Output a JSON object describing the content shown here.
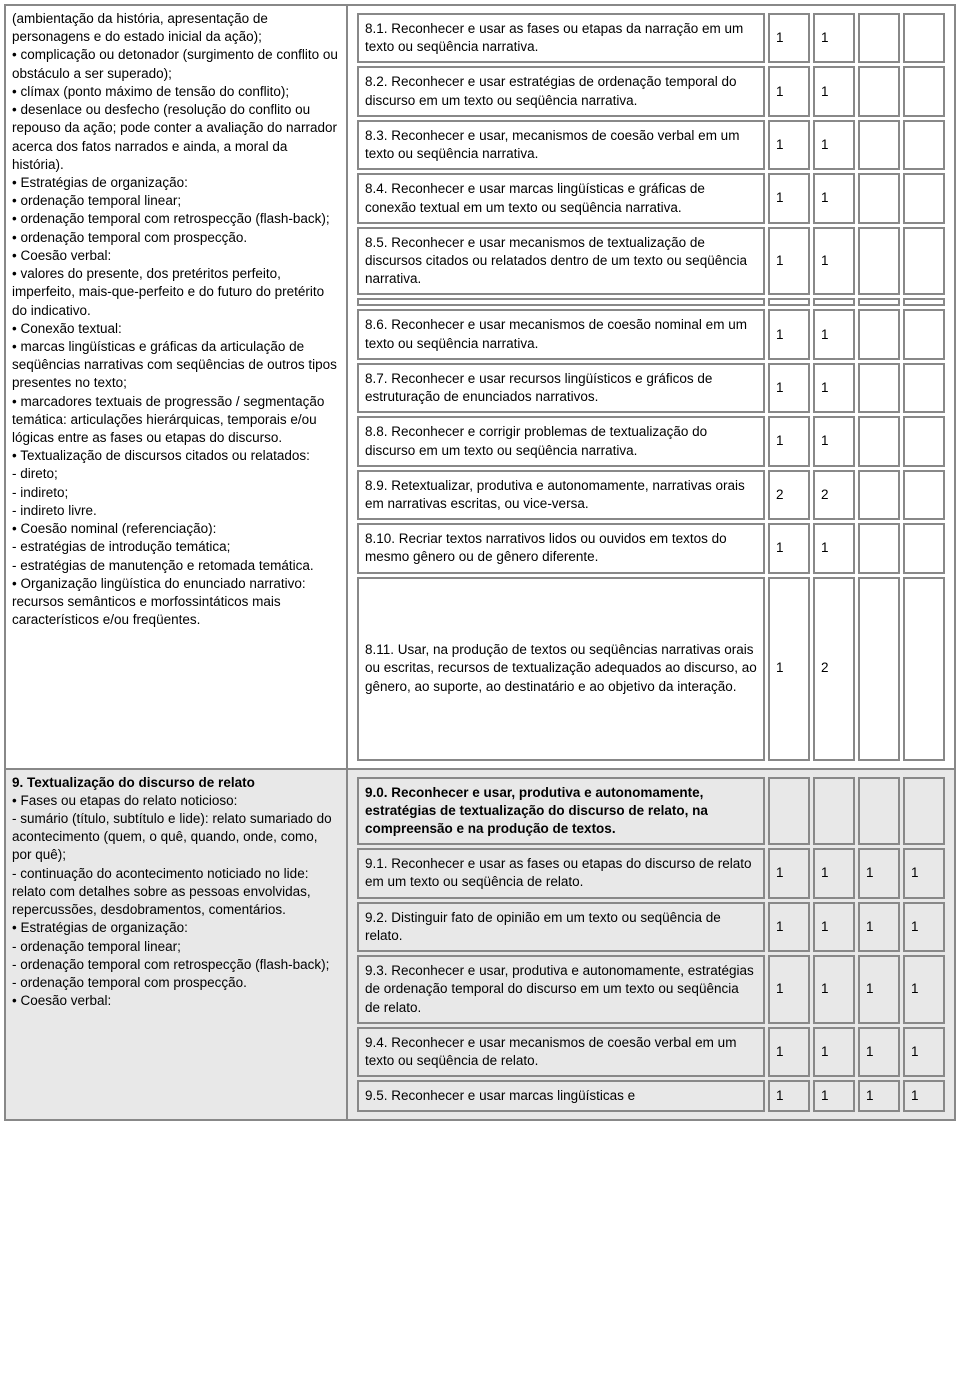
{
  "section8": {
    "left_text": "(ambientação da história, apresentação de personagens e do estado inicial da ação);\n• complicação ou detonador (surgimento de conflito ou obstáculo a ser superado);\n• clímax (ponto máximo de tensão do conflito);\n• desenlace ou desfecho (resolução do conflito ou repouso da ação; pode conter a avaliação do narrador acerca dos fatos narrados e ainda, a moral da história).\n• Estratégias de organização:\n• ordenação temporal linear;\n• ordenação temporal com retrospecção (flash-back);\n• ordenação temporal com prospecção.\n• Coesão verbal:\n• valores do presente, dos pretéritos perfeito, imperfeito, mais-que-perfeito e do futuro do pretérito do indicativo.\n• Conexão textual:\n• marcas lingüísticas e gráficas da articulação de seqüências narrativas com seqüências de outros tipos presentes no texto;\n• marcadores textuais de progressão / segmentação temática: articulações hierárquicas, temporais e/ou lógicas entre as fases ou etapas do discurso.\n• Textualização de discursos citados ou relatados:\n- direto;\n- indireto;\n- indireto livre.\n• Coesão nominal (referenciação):\n- estratégias de introdução temática;\n- estratégias de manutenção e retomada temática.\n• Organização lingüística do enunciado narrativo: recursos semânticos e morfossintáticos mais característicos e/ou freqüentes.",
    "rows": [
      {
        "desc": "8.1. Reconhecer e usar as fases ou etapas da narração em um texto ou seqüência narrativa.",
        "v": [
          "1",
          "1",
          "",
          ""
        ]
      },
      {
        "desc": "8.2. Reconhecer e usar estratégias de ordenação temporal do discurso em um texto ou seqüência narrativa.",
        "v": [
          "1",
          "1",
          "",
          ""
        ]
      },
      {
        "desc": "8.3. Reconhecer e usar, mecanismos de coesão verbal em um texto ou seqüência narrativa.",
        "v": [
          "1",
          "1",
          "",
          ""
        ]
      },
      {
        "desc": "8.4. Reconhecer e usar marcas lingüísticas e gráficas de conexão textual em um texto ou seqüência narrativa.",
        "v": [
          "1",
          "1",
          "",
          ""
        ]
      },
      {
        "desc": "8.5. Reconhecer e usar mecanismos de textualização de discursos citados ou relatados dentro de um texto ou seqüência narrativa.",
        "v": [
          "1",
          "1",
          "",
          ""
        ]
      },
      {
        "spacer": true
      },
      {
        "desc": "8.6. Reconhecer e usar mecanismos de coesão nominal em um texto ou seqüência narrativa.",
        "v": [
          "1",
          "1",
          "",
          ""
        ]
      },
      {
        "desc": "8.7. Reconhecer e usar recursos lingüísticos e gráficos de estruturação de enunciados narrativos.",
        "v": [
          "1",
          "1",
          "",
          ""
        ]
      },
      {
        "desc": "8.8. Reconhecer e corrigir problemas de textualização do discurso em um texto ou seqüência narrativa.",
        "v": [
          "1",
          "1",
          "",
          ""
        ]
      },
      {
        "desc": "8.9. Retextualizar, produtiva e autonomamente, narrativas orais em narrativas escritas, ou vice-versa.",
        "v": [
          "2",
          "2",
          "",
          ""
        ]
      },
      {
        "desc": "8.10. Recriar textos narrativos lidos ou ouvidos em textos do mesmo gênero ou de gênero diferente.",
        "v": [
          "1",
          "1",
          "",
          ""
        ]
      },
      {
        "desc": "8.11. Usar, na produção de textos ou seqüências narrativas orais ou escritas, recursos de textualização adequados ao discurso, ao gênero, ao suporte, ao destinatário e ao objetivo da interação.",
        "v": [
          "1",
          "2",
          "",
          ""
        ],
        "tall": true
      }
    ]
  },
  "section9": {
    "left_title": "9. Textualização do discurso de relato",
    "left_text": "\n• Fases ou etapas do relato noticioso:\n- sumário (título, subtítulo e lide): relato sumariado do acontecimento (quem, o quê, quando, onde, como, por quê);\n- continuação do acontecimento noticiado no lide: relato com detalhes sobre as pessoas envolvidas, repercussões, desdobramentos, comentários.\n• Estratégias de organização:\n- ordenação temporal linear;\n- ordenação temporal com retrospecção (flash-back);\n- ordenação temporal com prospecção.\n• Coesão verbal:",
    "rows": [
      {
        "desc": "9.0. Reconhecer e usar, produtiva e autonomamente, estratégias de textualização do discurso de relato, na compreensão e na produção de textos.",
        "v": [
          "",
          "",
          "",
          ""
        ],
        "bold": true
      },
      {
        "desc": "9.1. Reconhecer e usar as fases ou etapas do discurso de relato em um texto ou seqüência de relato.",
        "v": [
          "1",
          "1",
          "1",
          "1"
        ]
      },
      {
        "desc": "9.2. Distinguir fato de opinião em um texto ou seqüência de relato.",
        "v": [
          "1",
          "1",
          "1",
          "1"
        ]
      },
      {
        "desc": "9.3. Reconhecer e usar, produtiva e autonomamente, estratégias de ordenação temporal do discurso em um texto ou seqüência de relato.",
        "v": [
          "1",
          "1",
          "1",
          "1"
        ]
      },
      {
        "desc": "9.4. Reconhecer e usar mecanismos de coesão verbal em um texto ou seqüência de relato.",
        "v": [
          "1",
          "1",
          "1",
          "1"
        ]
      },
      {
        "desc": "9.5. Reconhecer e usar marcas lingüísticas e",
        "v": [
          "1",
          "1",
          "1",
          "1"
        ],
        "cut": true
      }
    ]
  }
}
